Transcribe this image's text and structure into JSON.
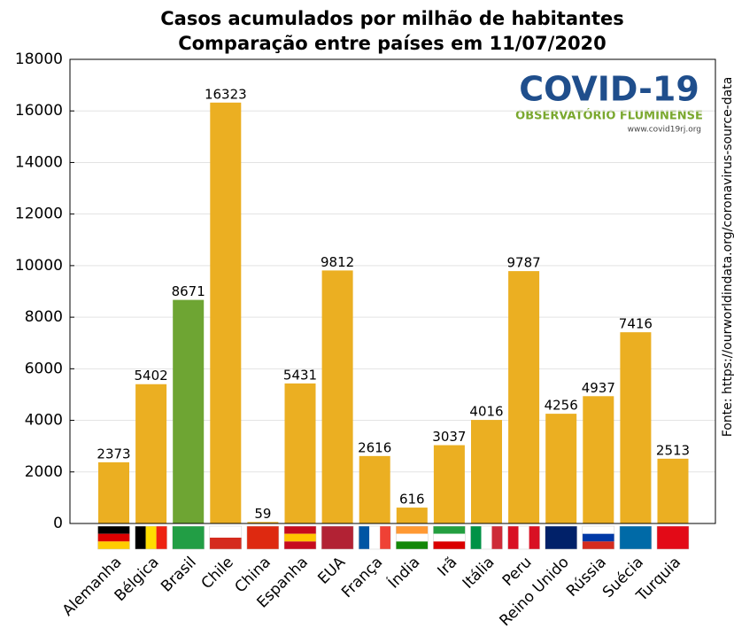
{
  "chart_data": {
    "type": "bar",
    "title": [
      "Casos acumulados por milhão de habitantes",
      "Comparação entre países em 11/07/2020"
    ],
    "categories": [
      "Alemanha",
      "Bélgica",
      "Brasil",
      "Chile",
      "China",
      "Espanha",
      "EUA",
      "França",
      "Índia",
      "Irã",
      "Itália",
      "Peru",
      "Reino Unido",
      "Rússia",
      "Suécia",
      "Turquia"
    ],
    "values": [
      2373,
      5402,
      8671,
      16323,
      59,
      5431,
      9812,
      2616,
      616,
      3037,
      4016,
      9787,
      4256,
      4937,
      7416,
      2513
    ],
    "colors": [
      "#ebaf22",
      "#ebaf22",
      "#6ea533",
      "#ebaf22",
      "#ebaf22",
      "#ebaf22",
      "#ebaf22",
      "#ebaf22",
      "#ebaf22",
      "#ebaf22",
      "#ebaf22",
      "#ebaf22",
      "#ebaf22",
      "#ebaf22",
      "#ebaf22",
      "#ebaf22"
    ],
    "ylim": [
      0,
      18000
    ],
    "yticks": [
      0,
      2000,
      4000,
      6000,
      8000,
      10000,
      12000,
      14000,
      16000,
      18000
    ],
    "grid": true,
    "source": "Fonte: https://ourworldindata.org/coronavirus-source-data",
    "logo": {
      "title": "COVID-19",
      "subtitle": "OBSERVATÓRIO FLUMINENSE",
      "url": "www.covid19rj.org"
    }
  }
}
